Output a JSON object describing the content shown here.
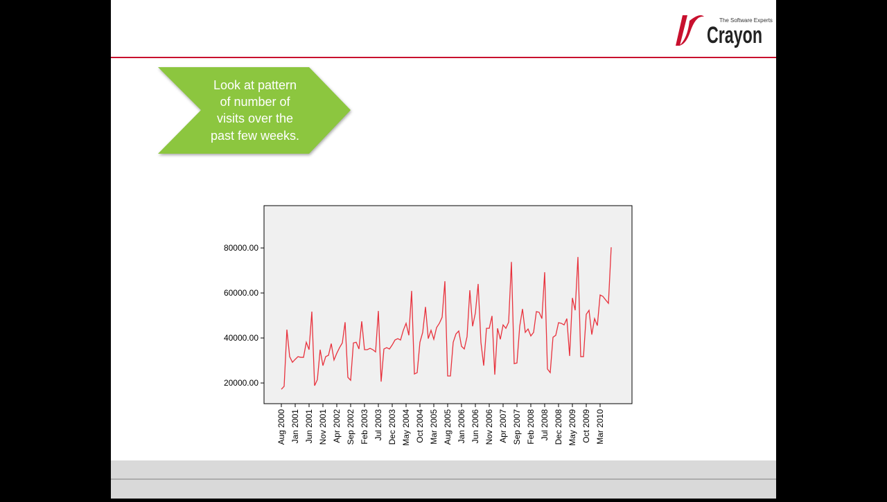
{
  "logo": {
    "tagline": "The Software Experts",
    "name": "Crayon"
  },
  "callout": {
    "lines": [
      "Look at pattern",
      "of number of",
      "visits over the",
      "past few weeks."
    ]
  },
  "chart_data": {
    "type": "line",
    "color": "#e8313c",
    "categories": [
      "Aug 2000",
      null,
      null,
      null,
      null,
      "Jan 2001",
      null,
      null,
      null,
      null,
      "Jun 2001",
      null,
      null,
      null,
      null,
      "Nov 2001",
      null,
      null,
      null,
      null,
      "Apr 2002",
      null,
      null,
      null,
      null,
      "Sep 2002",
      null,
      null,
      null,
      null,
      "Feb 2003",
      null,
      null,
      null,
      null,
      "Jul 2003",
      null,
      null,
      null,
      null,
      "Dec 2003",
      null,
      null,
      null,
      null,
      "May 2004",
      null,
      null,
      null,
      null,
      "Oct 2004",
      null,
      null,
      null,
      null,
      "Mar 2005",
      null,
      null,
      null,
      null,
      "Aug 2005",
      null,
      null,
      null,
      null,
      "Jan 2006",
      null,
      null,
      null,
      null,
      "Jun 2006",
      null,
      null,
      null,
      null,
      "Nov 2006",
      null,
      null,
      null,
      null,
      "Apr 2007",
      null,
      null,
      null,
      null,
      "Sep 2007",
      null,
      null,
      null,
      null,
      "Feb 2008",
      null,
      null,
      null,
      null,
      "Jul 2008",
      null,
      null,
      null,
      null,
      "Dec 2008",
      null,
      null,
      null,
      null,
      "May 2009",
      null,
      null,
      null,
      null,
      "Oct 2009",
      null,
      null,
      null,
      null,
      "Mar 2010",
      null,
      null,
      null,
      null
    ],
    "values": [
      17200,
      18500,
      43700,
      31700,
      29200,
      30500,
      31700,
      31400,
      31400,
      38100,
      34800,
      51700,
      18800,
      21500,
      34800,
      27700,
      31700,
      32300,
      37500,
      30200,
      33200,
      35700,
      37800,
      47000,
      22500,
      21200,
      37800,
      38100,
      35100,
      47400,
      34800,
      34800,
      35400,
      34800,
      33800,
      52000,
      20600,
      35100,
      35700,
      35100,
      36900,
      39100,
      39700,
      39100,
      43400,
      46500,
      41200,
      60900,
      24000,
      24600,
      38100,
      42500,
      53800,
      39700,
      43400,
      39400,
      44600,
      46500,
      49200,
      65200,
      23100,
      23100,
      38100,
      41800,
      43100,
      36300,
      35100,
      40600,
      61200,
      45200,
      51100,
      64000,
      38100,
      27700,
      44300,
      44300,
      49800,
      23700,
      44300,
      39400,
      45800,
      44300,
      47000,
      73800,
      28600,
      28900,
      45200,
      52900,
      42500,
      44000,
      40900,
      42500,
      51700,
      51400,
      48600,
      69200,
      26200,
      24600,
      40300,
      41200,
      46800,
      46500,
      45800,
      48600,
      32000,
      57800,
      52300,
      76000,
      31700,
      31700,
      50500,
      52300,
      41500,
      48600,
      45500,
      59100,
      58500,
      56900,
      55400,
      80300
    ],
    "ylim": [
      10800,
      98800
    ],
    "yticks": [
      {
        "value": 20000,
        "label": "20000.00"
      },
      {
        "value": 40000,
        "label": "40000.00"
      },
      {
        "value": 60000,
        "label": "60000.00"
      },
      {
        "value": 80000,
        "label": "80000.00"
      }
    ]
  }
}
